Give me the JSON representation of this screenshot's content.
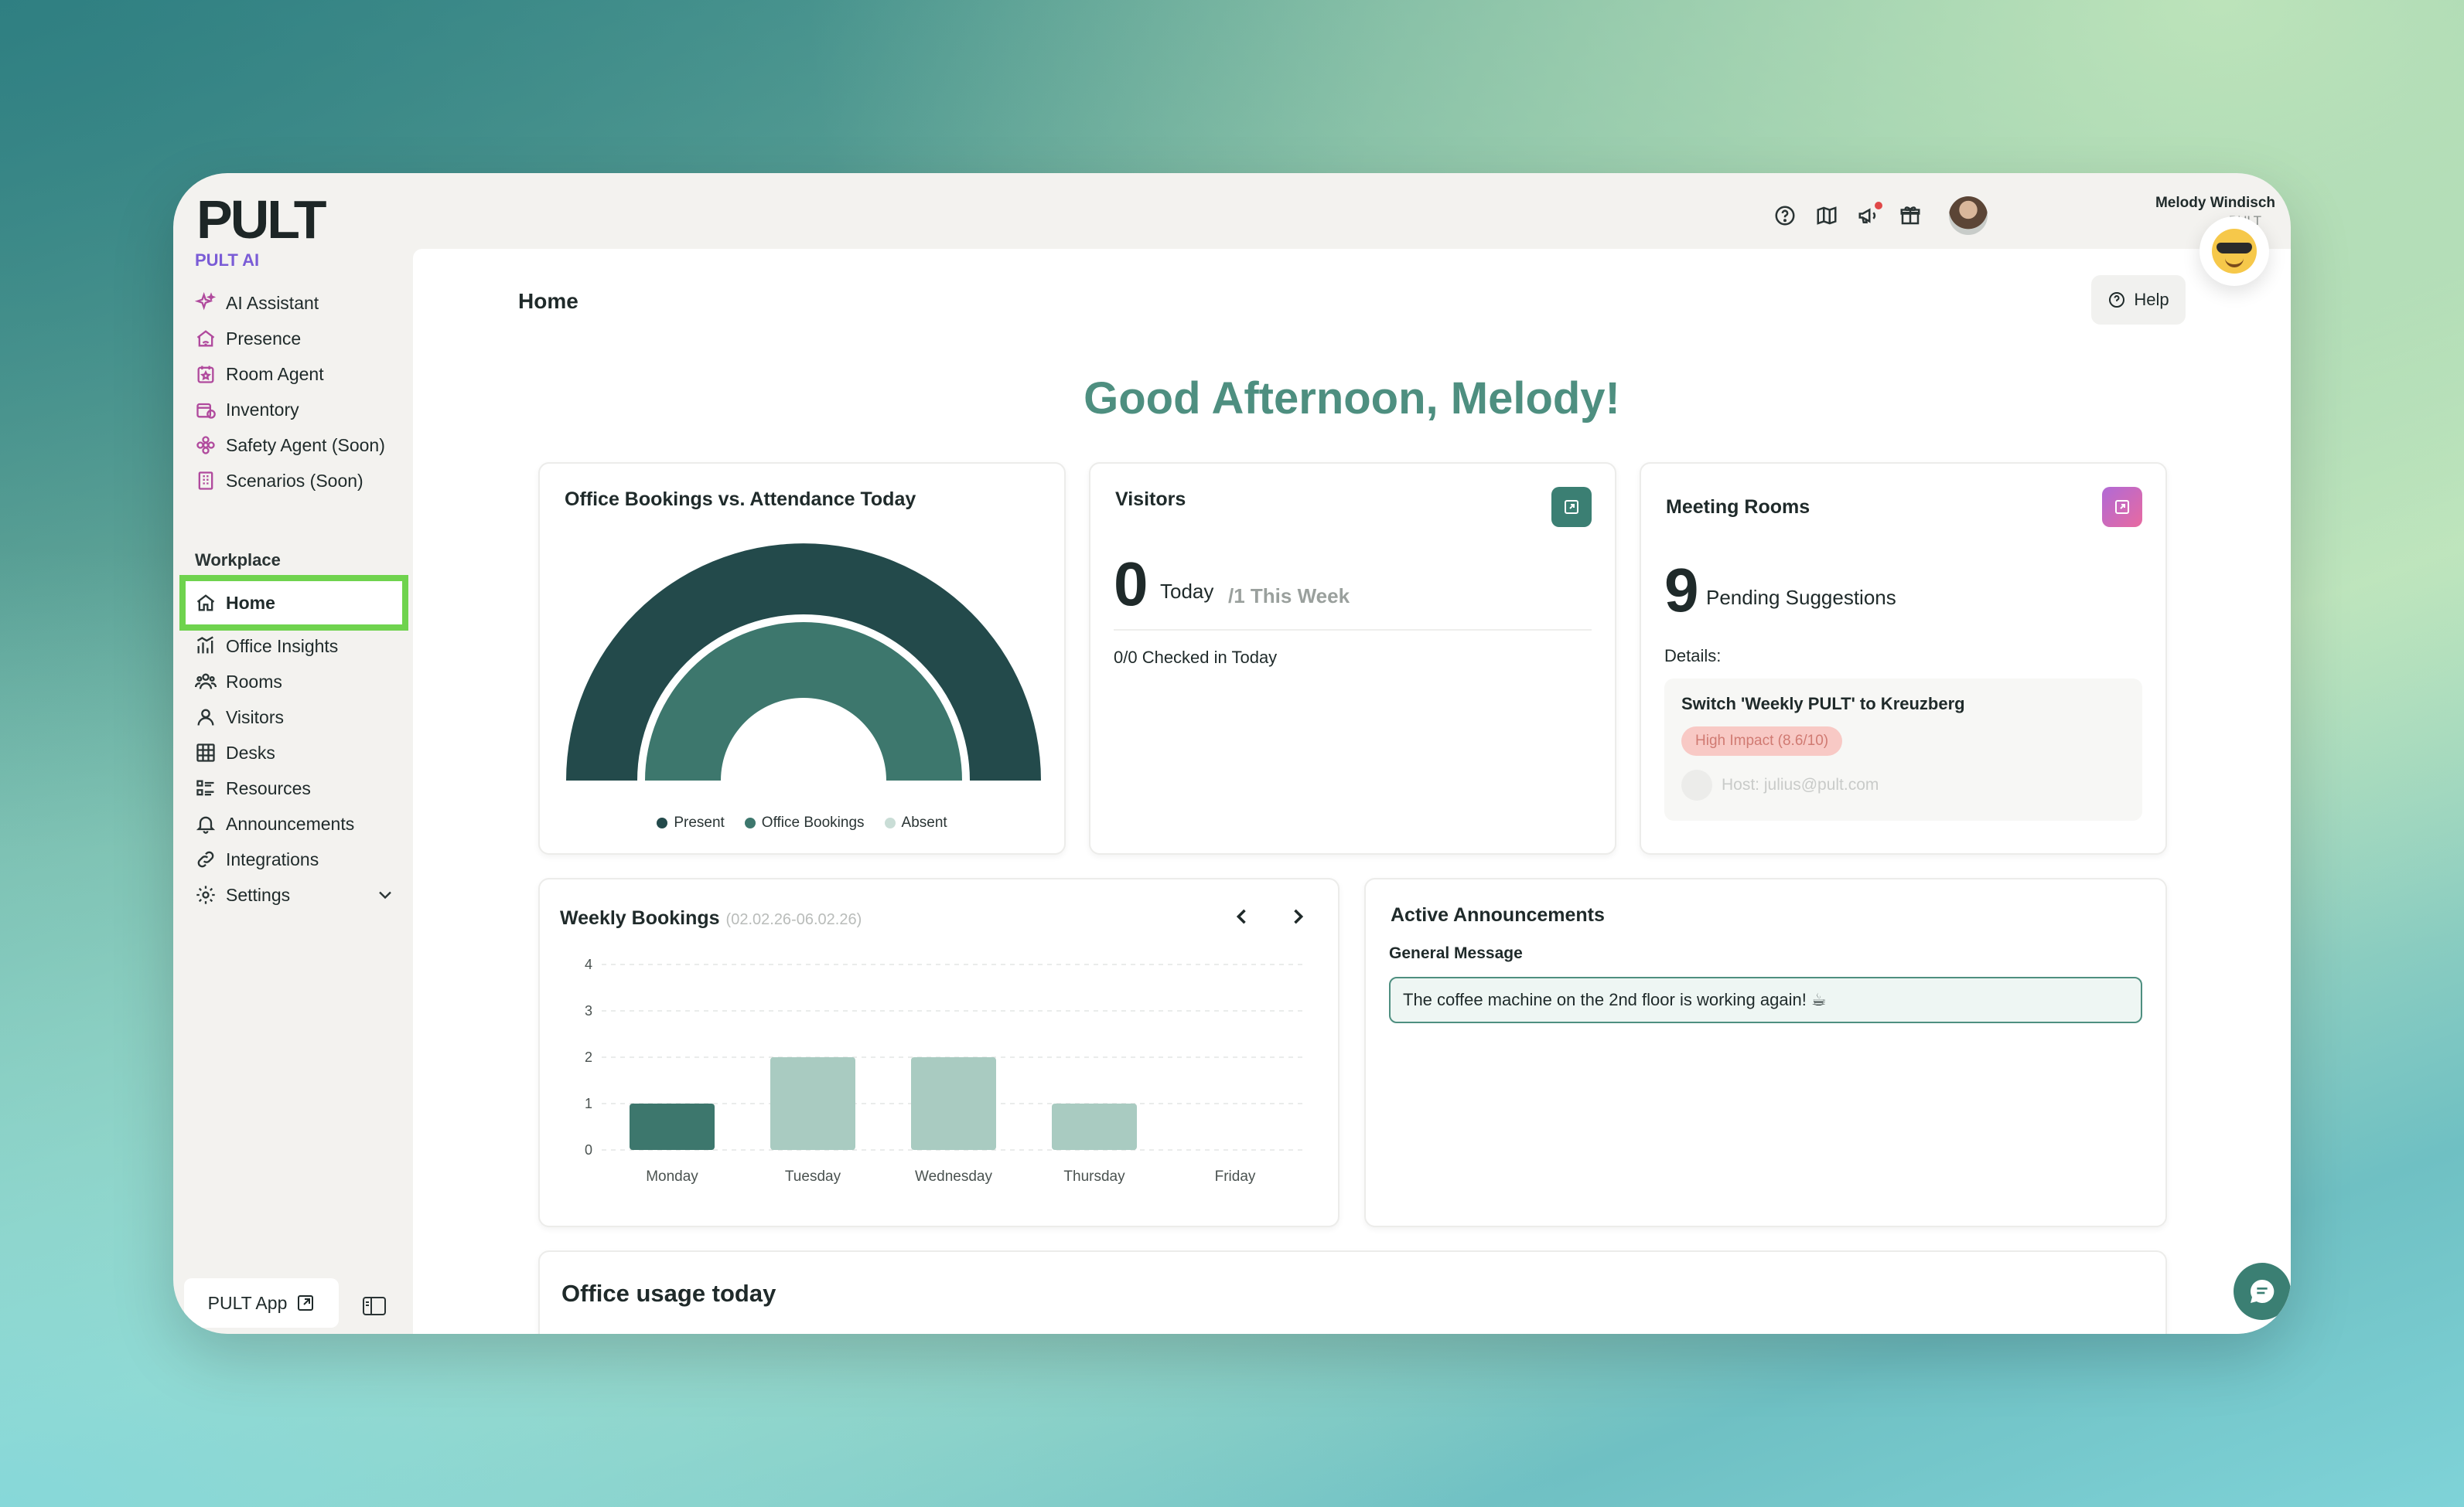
{
  "app": {
    "logo": "PULT",
    "user_name": "Melody Windisch",
    "user_sub": "PULT"
  },
  "sidebar": {
    "ai_section": "PULT AI",
    "ai_items": [
      {
        "label": "AI Assistant",
        "icon": "sparkles-icon"
      },
      {
        "label": "Presence",
        "icon": "home-signal-icon"
      },
      {
        "label": "Room Agent",
        "icon": "calendar-star-icon"
      },
      {
        "label": "Inventory",
        "icon": "box-badge-icon"
      },
      {
        "label": "Safety Agent (Soon)",
        "icon": "flower-icon"
      },
      {
        "label": "Scenarios (Soon)",
        "icon": "building-icon"
      }
    ],
    "workplace_section": "Workplace",
    "workplace_items": [
      {
        "label": "Home",
        "icon": "house-icon"
      },
      {
        "label": "Office Insights",
        "icon": "bar-chart-icon"
      },
      {
        "label": "Rooms",
        "icon": "people-group-icon"
      },
      {
        "label": "Visitors",
        "icon": "person-icon"
      },
      {
        "label": "Desks",
        "icon": "desk-grid-icon"
      },
      {
        "label": "Resources",
        "icon": "list-icon"
      },
      {
        "label": "Announcements",
        "icon": "bell-icon"
      },
      {
        "label": "Integrations",
        "icon": "link-icon"
      },
      {
        "label": "Settings",
        "icon": "gear-icon"
      }
    ],
    "pult_app_label": "PULT App"
  },
  "header": {
    "page_title": "Home",
    "help_label": "Help",
    "greeting": "Good Afternoon, Melody!"
  },
  "attendance_card": {
    "title": "Office Bookings vs. Attendance Today",
    "legend": [
      "Present",
      "Office Bookings",
      "Absent"
    ],
    "colors": {
      "present": "#234a4b",
      "bookings": "#3d776d",
      "absent": "#c9ddd6"
    }
  },
  "visitors_card": {
    "title": "Visitors",
    "count": "0",
    "today_label": "Today",
    "week_label": "/1 This Week",
    "checked_in": "0/0 Checked in Today",
    "accent": "#3b7f73"
  },
  "meeting_card": {
    "title": "Meeting Rooms",
    "count": "9",
    "count_label": "Pending Suggestions",
    "details_label": "Details:",
    "suggestion_title": "Switch 'Weekly PULT' to Kreuzberg",
    "impact_badge": "High Impact (8.6/10)",
    "host": "Host: julius@pult.com"
  },
  "weekly_card": {
    "title": "Weekly Bookings",
    "range": "(02.02.26-06.02.26)"
  },
  "chart_data": {
    "type": "bar",
    "categories": [
      "Monday",
      "Tuesday",
      "Wednesday",
      "Thursday",
      "Friday"
    ],
    "values": [
      1,
      2,
      2,
      1,
      0
    ],
    "ylim": [
      0,
      4
    ],
    "yticks": [
      "0",
      "1",
      "2",
      "3",
      "4"
    ],
    "highlight_index": 0,
    "colors": {
      "highlight": "#3d776d",
      "normal": "#a9cbc1"
    },
    "grid": true
  },
  "announcements_card": {
    "title": "Active Announcements",
    "subtitle": "General Message",
    "message": "The coffee machine on the 2nd floor is working again! ☕"
  },
  "usage_card": {
    "title": "Office usage today"
  }
}
